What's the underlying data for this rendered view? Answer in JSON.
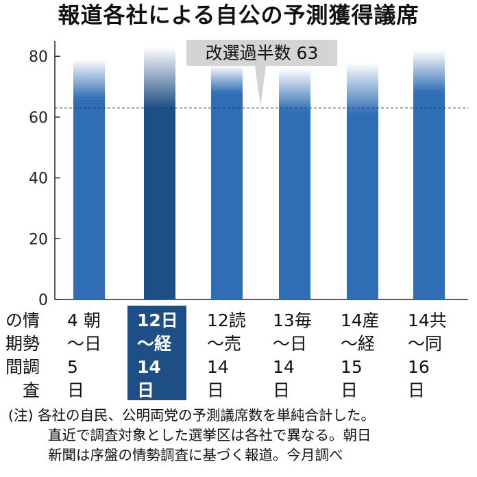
{
  "title": "報道各社による自公の予測獲得議席",
  "chart_data": {
    "type": "bar",
    "ylim": [
      0,
      85
    ],
    "yticks": [
      0,
      20,
      40,
      60,
      80
    ],
    "categories": [
      "朝日 4〜5日",
      "日経 12〜14日",
      "読売 12〜14日",
      "毎日 13〜14日",
      "産経 14〜15日",
      "共同 14〜16日"
    ],
    "range_low": [
      66,
      63,
      68,
      62,
      61,
      68
    ],
    "range_high": [
      79,
      83,
      77,
      76,
      78,
      82
    ],
    "highlighted_index": 1,
    "reference_line": {
      "value": 63,
      "label": "改選過半数 63"
    }
  },
  "row_header": [
    "の情",
    "期勢",
    "間調",
    "　査"
  ],
  "columns": [
    {
      "lines": [
        "4 朝",
        "〜日",
        "5",
        "日"
      ]
    },
    {
      "lines": [
        "12日",
        "〜経",
        "14",
        "日"
      ]
    },
    {
      "lines": [
        "12読",
        "〜売",
        "14",
        "日"
      ]
    },
    {
      "lines": [
        "13毎",
        "〜日",
        "14",
        "日"
      ]
    },
    {
      "lines": [
        "14産",
        "〜経",
        "15",
        "日"
      ]
    },
    {
      "lines": [
        "14共",
        "〜同",
        "16",
        "日"
      ]
    }
  ],
  "note": [
    "(注) 各社の自民、公明両党の予測議席数を単純合計した。",
    "直近で調査対象とした選挙区は各社で異なる。朝日",
    "新聞は序盤の情勢調査に基づく報道。今月調べ"
  ],
  "colors": {
    "bar": "#2f6db5",
    "bar_highlight": "#1d4f86",
    "callout": "#d4d4d4"
  }
}
